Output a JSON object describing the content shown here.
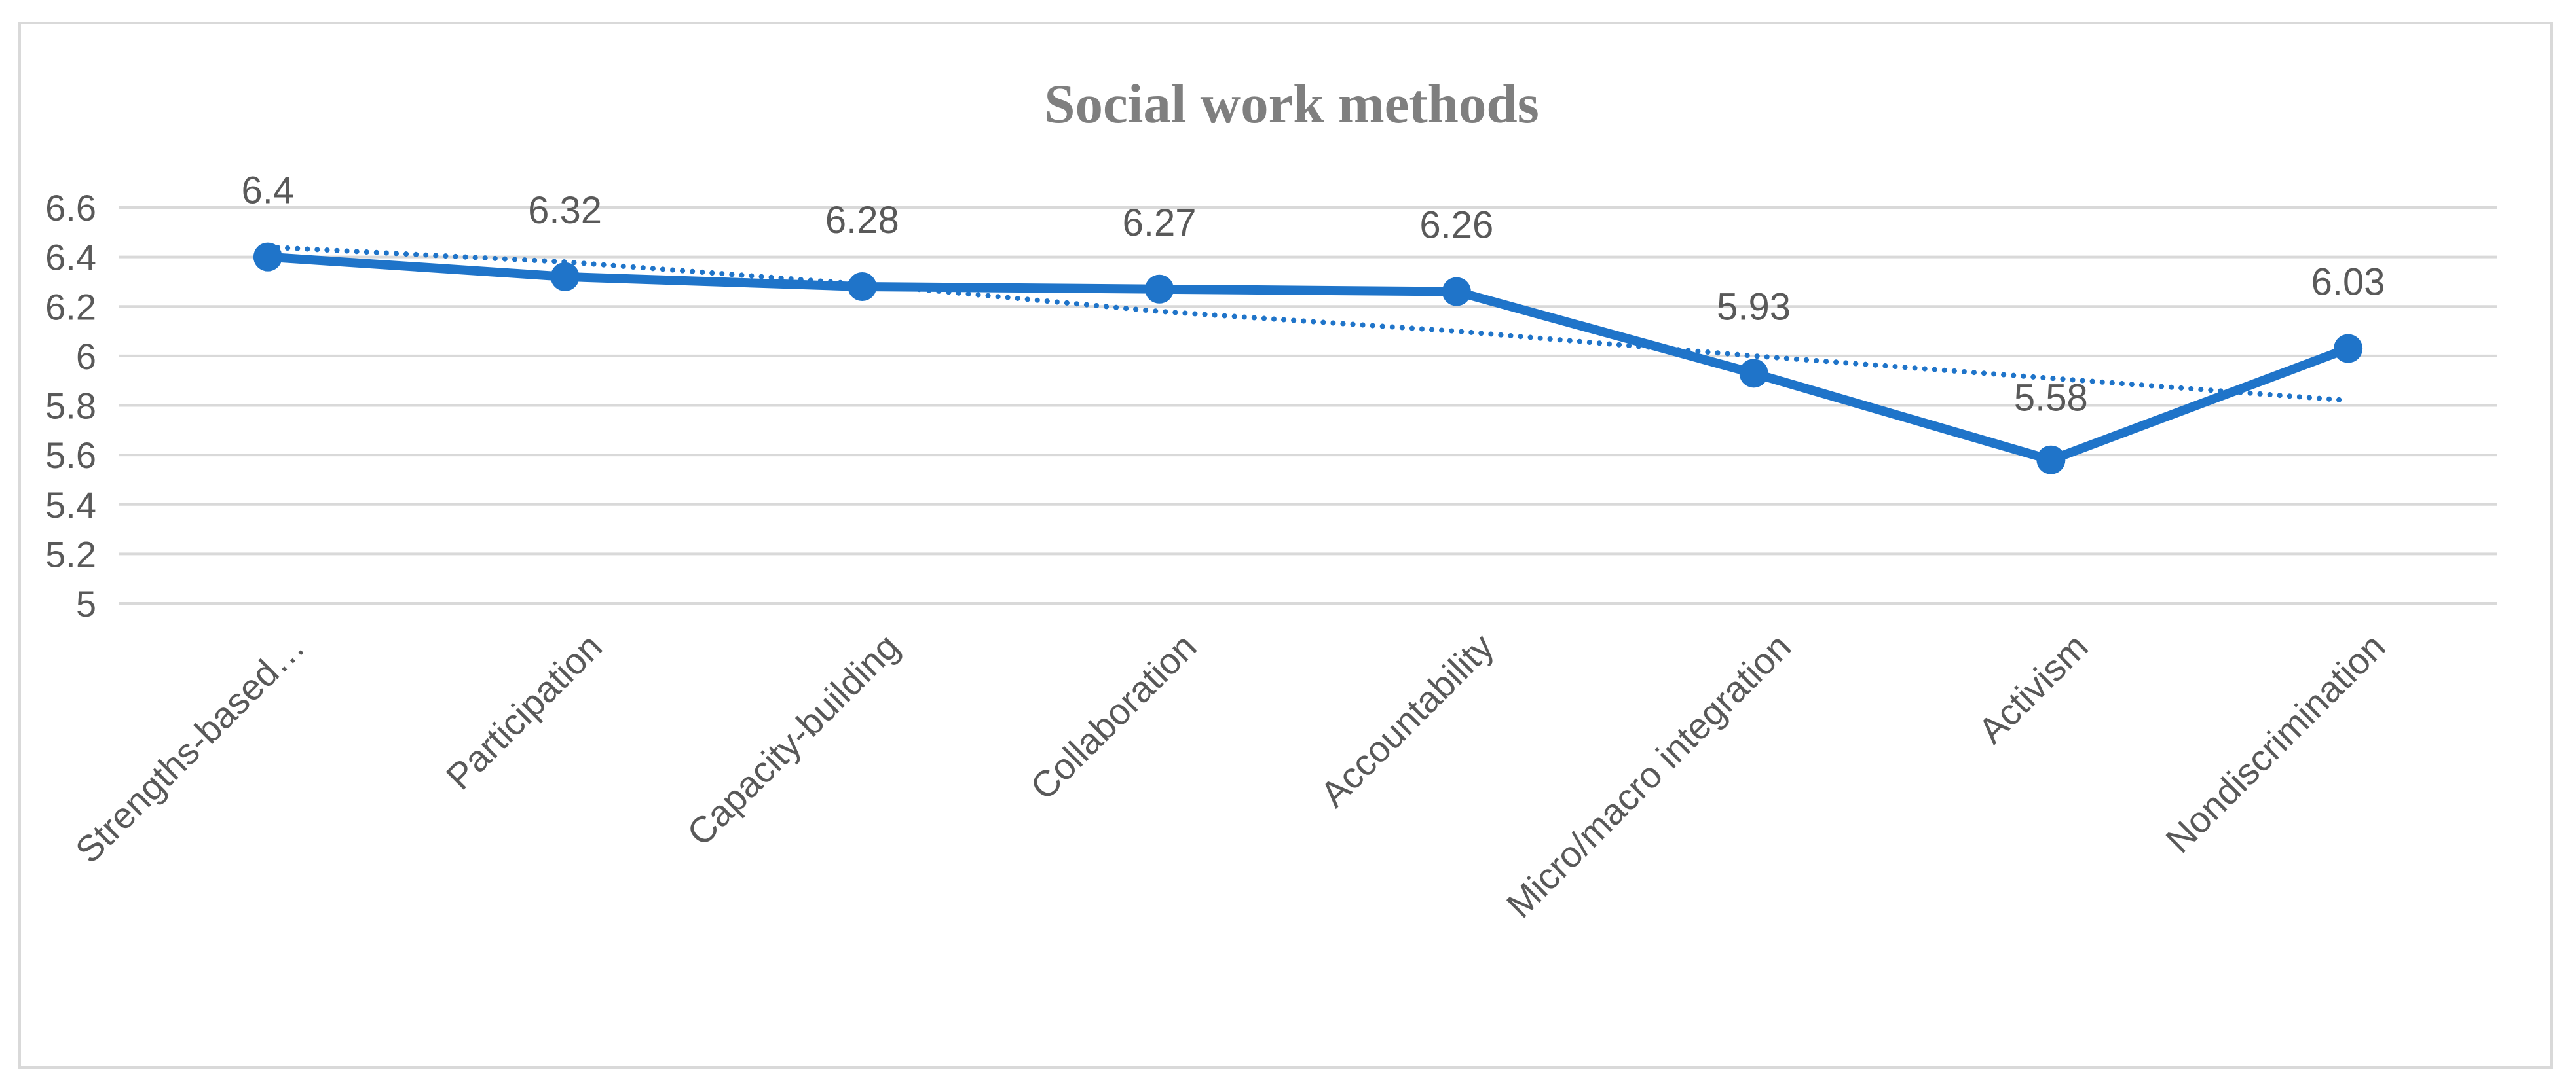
{
  "chart_data": {
    "type": "line",
    "title": "Social work methods",
    "categories": [
      "Strengths-based…",
      "Participation",
      "Capacity-building",
      "Collaboration",
      "Accountability",
      "Micro/macro integration",
      "Activism",
      "Nondiscrimination"
    ],
    "series": [
      {
        "values": [
          6.4,
          6.32,
          6.28,
          6.27,
          6.26,
          5.93,
          5.58,
          6.03
        ],
        "color": "#1f74c9",
        "style": "solid",
        "markers": true,
        "data_labels": true
      },
      {
        "values": [
          6.44,
          6.38,
          6.29,
          6.18,
          6.1,
          6.0,
          5.91,
          5.82
        ],
        "color": "#1f74c9",
        "style": "dotted",
        "markers": false,
        "trendline": "linear"
      }
    ],
    "y_ticks": [
      "5",
      "5.2",
      "5.4",
      "5.6",
      "5.8",
      "6",
      "6.2",
      "6.4",
      "6.6"
    ],
    "ylim": [
      5,
      6.6
    ],
    "grid": true,
    "legend": "none"
  }
}
